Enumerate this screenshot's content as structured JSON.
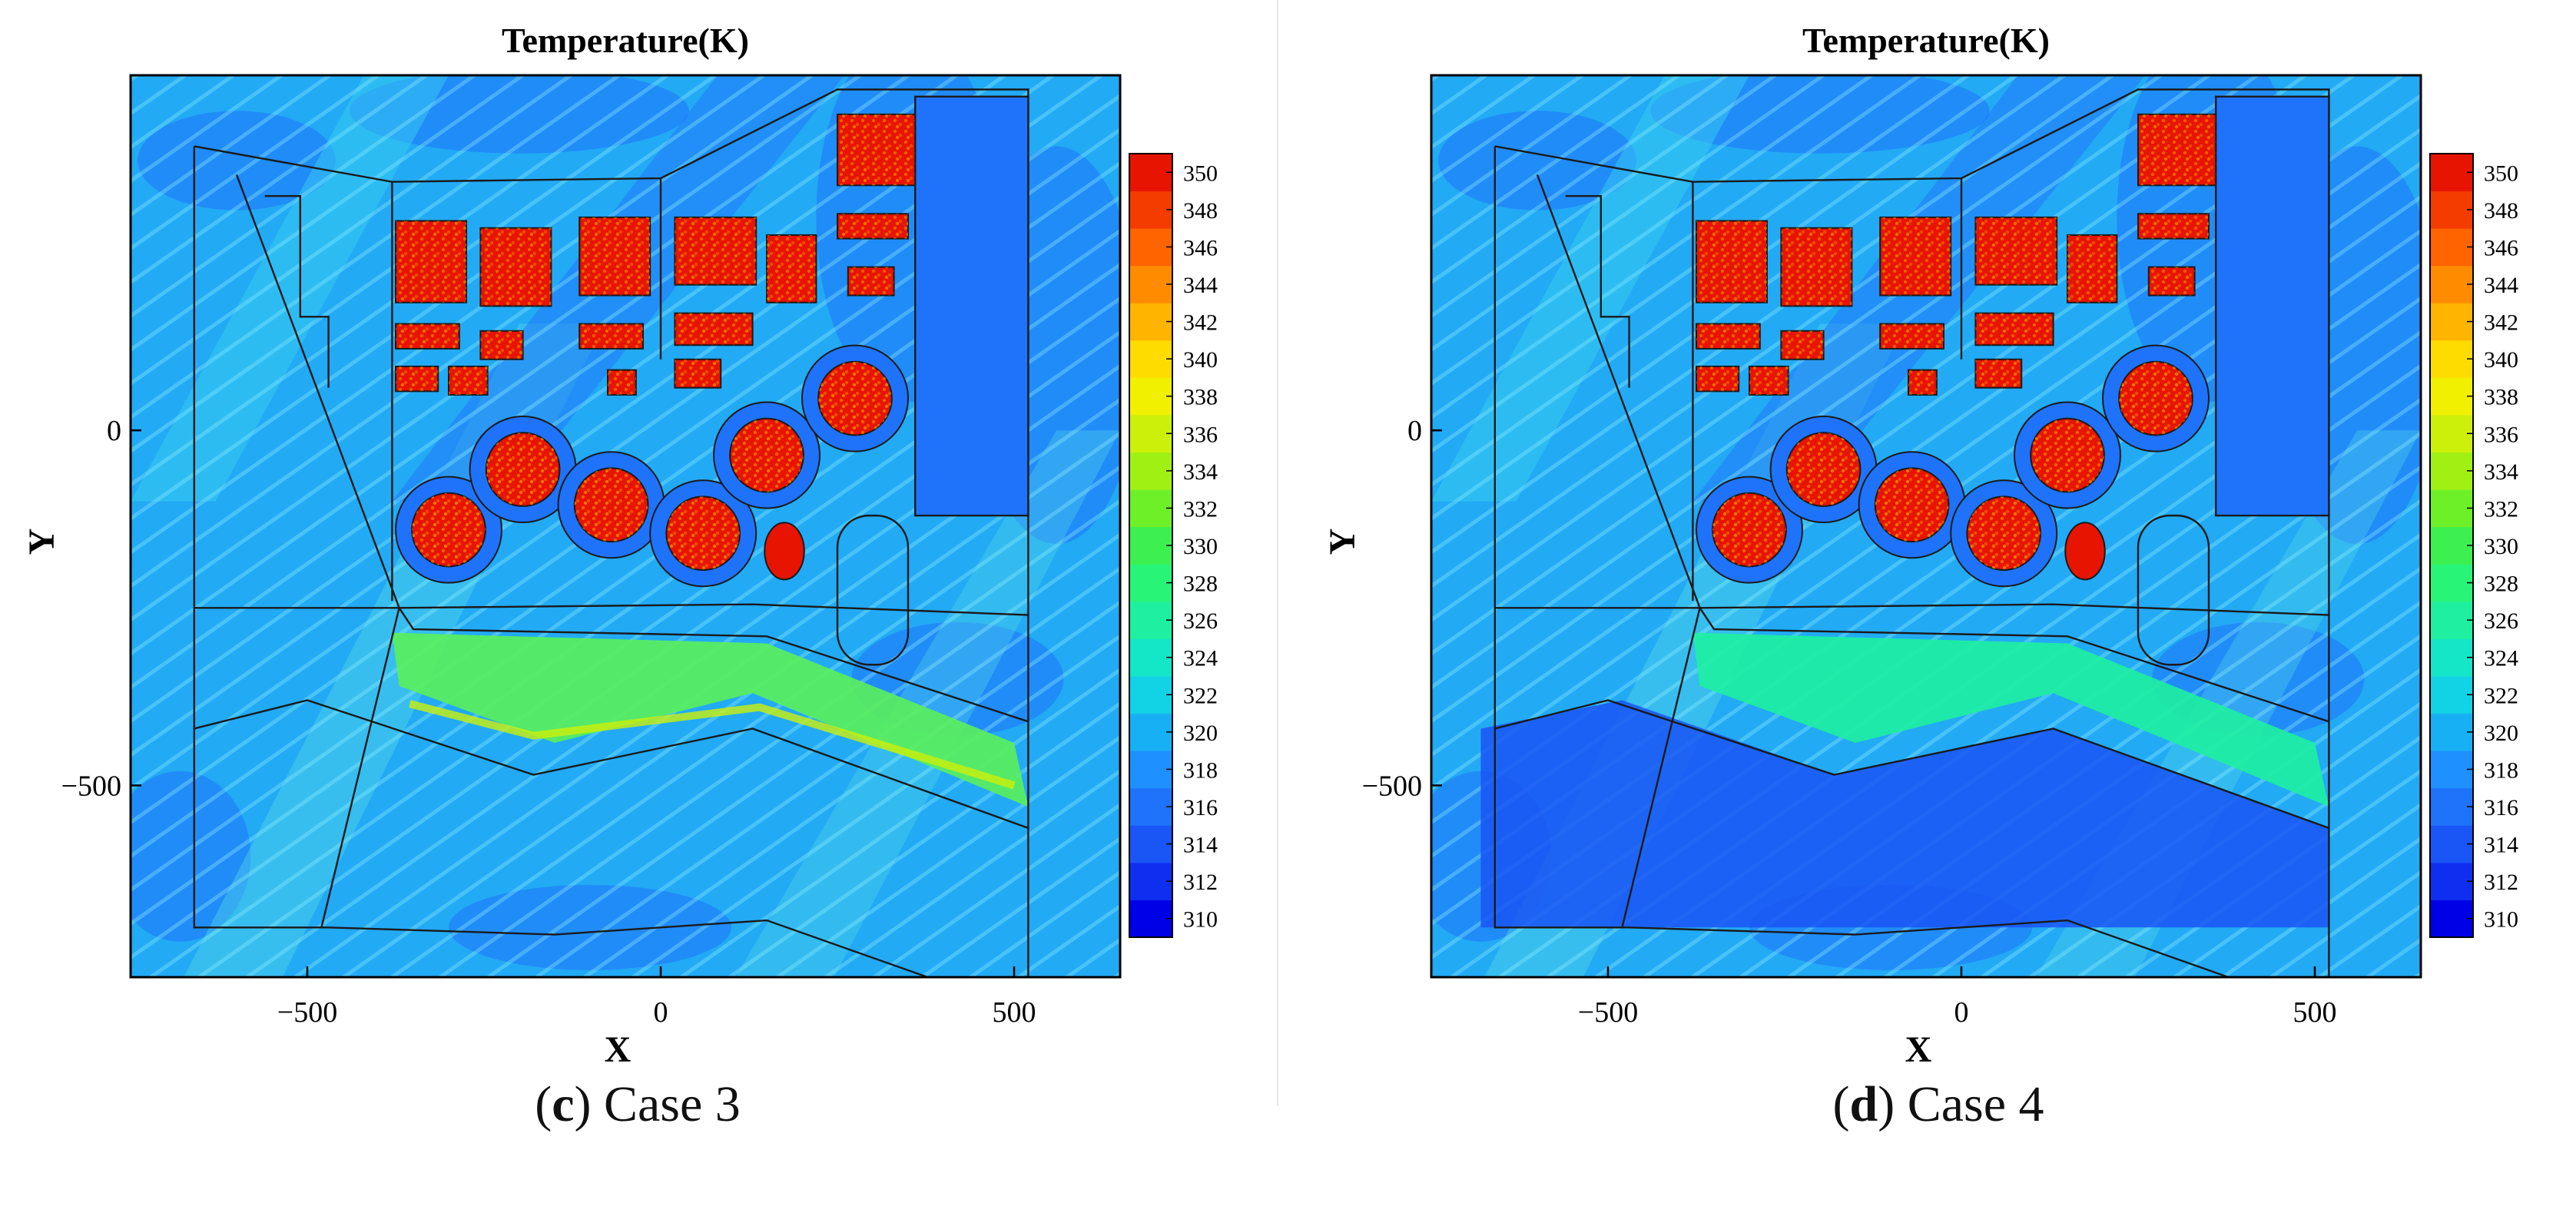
{
  "figure": {
    "panels": [
      {
        "caption_letter": "c",
        "caption_text": "Case 3",
        "variant": "case3"
      },
      {
        "caption_letter": "d",
        "caption_text": "Case 4",
        "variant": "case4"
      }
    ]
  },
  "chart_data": [
    {
      "type": "heatmap",
      "title": "Temperature(K)",
      "xlabel": "X",
      "ylabel": "Y",
      "xlim": [
        -750,
        650
      ],
      "ylim": [
        -770,
        500
      ],
      "x_ticks": [
        -500,
        0,
        500
      ],
      "x_tick_labels": [
        "−500",
        "0",
        "500"
      ],
      "y_ticks": [
        0,
        -500
      ],
      "y_tick_labels": [
        "0",
        "−500"
      ],
      "colorbar": {
        "min": 310,
        "max": 350,
        "step": 2,
        "tick_labels": [
          "350",
          "348",
          "346",
          "344",
          "342",
          "340",
          "338",
          "336",
          "334",
          "332",
          "330",
          "328",
          "326",
          "324",
          "322",
          "320",
          "318",
          "316",
          "314",
          "312",
          "310"
        ],
        "colors": [
          "#0000e6",
          "#0f2ff0",
          "#1a55f5",
          "#1f73fa",
          "#1e90ff",
          "#18b0f5",
          "#12d2e6",
          "#14e6c8",
          "#1ef0a0",
          "#28f578",
          "#3cf050",
          "#6ef028",
          "#a0f014",
          "#ccf00a",
          "#f0f000",
          "#ffdc00",
          "#ffb400",
          "#ff8c00",
          "#ff6400",
          "#f53c00",
          "#e61400"
        ]
      },
      "series": [
        {
          "values": [
            [
              -300,
              -140,
              350
            ],
            [
              -195,
              -55,
              350
            ],
            [
              -70,
              -105,
              350
            ],
            [
              60,
              -145,
              350
            ],
            [
              150,
              -35,
              350
            ],
            [
              275,
              45,
              350
            ],
            [
              -235,
              240,
              350
            ],
            [
              -90,
              240,
              350
            ],
            [
              65,
              230,
              350
            ],
            [
              320,
              380,
              350
            ],
            [
              -145,
              320,
              320
            ]
          ]
        }
      ]
    },
    {
      "type": "heatmap",
      "title": "Temperature(K)",
      "xlabel": "X",
      "ylabel": "Y",
      "xlim": [
        -750,
        650
      ],
      "ylim": [
        -770,
        500
      ],
      "x_ticks": [
        -500,
        0,
        500
      ],
      "x_tick_labels": [
        "−500",
        "0",
        "500"
      ],
      "y_ticks": [
        0,
        -500
      ],
      "y_tick_labels": [
        "0",
        "−500"
      ],
      "colorbar": {
        "min": 310,
        "max": 350,
        "step": 2,
        "tick_labels": [
          "350",
          "348",
          "346",
          "344",
          "342",
          "340",
          "338",
          "336",
          "334",
          "332",
          "330",
          "328",
          "326",
          "324",
          "322",
          "320",
          "318",
          "316",
          "314",
          "312",
          "310"
        ],
        "colors": [
          "#0000e6",
          "#0f2ff0",
          "#1a55f5",
          "#1f73fa",
          "#1e90ff",
          "#18b0f5",
          "#12d2e6",
          "#14e6c8",
          "#1ef0a0",
          "#28f578",
          "#3cf050",
          "#6ef028",
          "#a0f014",
          "#ccf00a",
          "#f0f000",
          "#ffdc00",
          "#ffb400",
          "#ff8c00",
          "#ff6400",
          "#f53c00",
          "#e61400"
        ]
      },
      "series": [
        {
          "values": [
            [
              -300,
              -140,
              350
            ],
            [
              -195,
              -55,
              350
            ],
            [
              -70,
              -105,
              350
            ],
            [
              60,
              -145,
              350
            ],
            [
              150,
              -35,
              350
            ],
            [
              275,
              45,
              350
            ],
            [
              -235,
              240,
              350
            ],
            [
              -90,
              240,
              350
            ],
            [
              65,
              230,
              350
            ],
            [
              320,
              380,
              350
            ],
            [
              -145,
              320,
              318
            ]
          ]
        }
      ]
    }
  ]
}
